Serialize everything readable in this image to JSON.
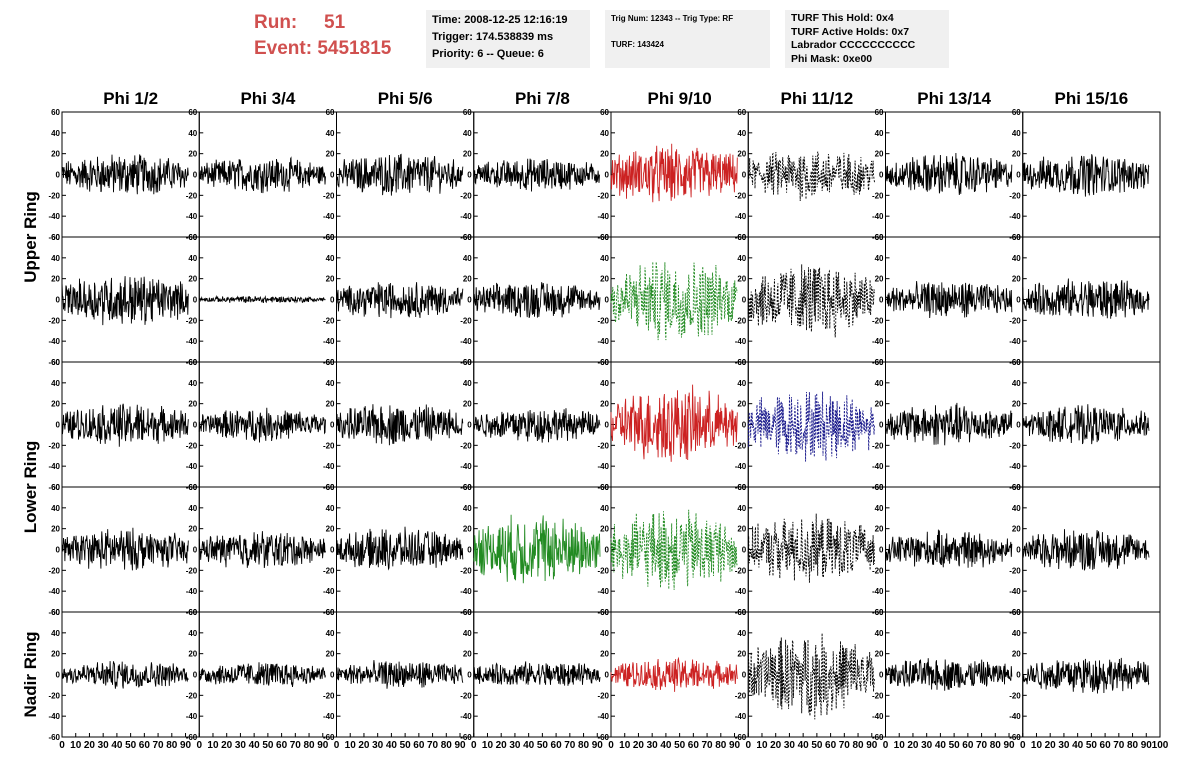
{
  "header": {
    "run_label": "Run:",
    "run_value": "51",
    "event_label": "Event:",
    "event_value": "5451815",
    "time": "Time: 2008-12-25 12:16:19",
    "trigger": "Trigger: 174.538839 ms",
    "priority": "Priority: 6 -- Queue: 6",
    "trig_num": "Trig Num: 12343 -- Trig Type: RF",
    "turf": "TURF: 143424",
    "turf_hold": "TURF This Hold: 0x4",
    "turf_active": "TURF Active Holds: 0x7",
    "labrador": "Labrador CCCCCCCCCC",
    "phi_mask": "Phi Mask: 0xe00"
  },
  "colors": {
    "accent_red": "#d0504f",
    "trace_black": "#000000",
    "trace_red": "#cc2222",
    "trace_green": "#228b22",
    "trace_blue": "#1a1a8c",
    "box_bg": "#f0f0f0"
  },
  "chart_data": {
    "type": "line",
    "title": "",
    "columns": [
      "Phi 1/2",
      "Phi 3/4",
      "Phi 5/6",
      "Phi 7/8",
      "Phi 9/10",
      "Phi 11/12",
      "Phi 13/14",
      "Phi 15/16"
    ],
    "rows": [
      "Upper Ring",
      "Lower Ring",
      "Nadir Ring"
    ],
    "ylim": [
      -60,
      60
    ],
    "yticks": [
      -60,
      -40,
      -20,
      0,
      20,
      40,
      60
    ],
    "xlim": [
      0,
      100
    ],
    "xticks": [
      0,
      10,
      20,
      30,
      40,
      50,
      60,
      70,
      80,
      90,
      100
    ],
    "panels": [
      [
        {
          "color": "black",
          "style": "solid",
          "amp": 18
        },
        {
          "color": "black",
          "style": "solid",
          "amp": 15
        },
        {
          "color": "black",
          "style": "solid",
          "amp": 18
        },
        {
          "color": "black",
          "style": "solid",
          "amp": 14
        },
        {
          "color": "red",
          "style": "solid",
          "amp": 25
        },
        {
          "color": "black",
          "style": "dashed",
          "amp": 22
        },
        {
          "color": "black",
          "style": "solid",
          "amp": 18
        },
        {
          "color": "black",
          "style": "solid",
          "amp": 18
        }
      ],
      [
        {
          "color": "black",
          "style": "solid",
          "amp": 22
        },
        {
          "color": "black",
          "style": "solid",
          "amp": 3
        },
        {
          "color": "black",
          "style": "solid",
          "amp": 16
        },
        {
          "color": "black",
          "style": "solid",
          "amp": 16
        },
        {
          "color": "green",
          "style": "dashed",
          "amp": 35
        },
        {
          "color": "black",
          "style": "dashed",
          "amp": 32
        },
        {
          "color": "black",
          "style": "solid",
          "amp": 16
        },
        {
          "color": "black",
          "style": "solid",
          "amp": 18
        }
      ],
      [
        {
          "color": "black",
          "style": "solid",
          "amp": 18
        },
        {
          "color": "black",
          "style": "solid",
          "amp": 14
        },
        {
          "color": "black",
          "style": "solid",
          "amp": 18
        },
        {
          "color": "black",
          "style": "solid",
          "amp": 15
        },
        {
          "color": "red",
          "style": "solid",
          "amp": 32
        },
        {
          "color": "blue",
          "style": "dashed",
          "amp": 30
        },
        {
          "color": "black",
          "style": "solid",
          "amp": 18
        },
        {
          "color": "black",
          "style": "solid",
          "amp": 16
        }
      ],
      [
        {
          "color": "black",
          "style": "solid",
          "amp": 18
        },
        {
          "color": "black",
          "style": "solid",
          "amp": 16
        },
        {
          "color": "black",
          "style": "solid",
          "amp": 18
        },
        {
          "color": "green",
          "style": "solid",
          "amp": 30
        },
        {
          "color": "green",
          "style": "dashed",
          "amp": 34
        },
        {
          "color": "black",
          "style": "dashed",
          "amp": 28
        },
        {
          "color": "black",
          "style": "solid",
          "amp": 16
        },
        {
          "color": "black",
          "style": "solid",
          "amp": 18
        }
      ],
      [
        {
          "color": "black",
          "style": "solid",
          "amp": 12
        },
        {
          "color": "black",
          "style": "solid",
          "amp": 11
        },
        {
          "color": "black",
          "style": "solid",
          "amp": 12
        },
        {
          "color": "black",
          "style": "solid",
          "amp": 11
        },
        {
          "color": "red",
          "style": "solid",
          "amp": 14
        },
        {
          "color": "black",
          "style": "dashed",
          "amp": 35
        },
        {
          "color": "black",
          "style": "solid",
          "amp": 14
        },
        {
          "color": "black",
          "style": "solid",
          "amp": 16
        }
      ]
    ]
  }
}
